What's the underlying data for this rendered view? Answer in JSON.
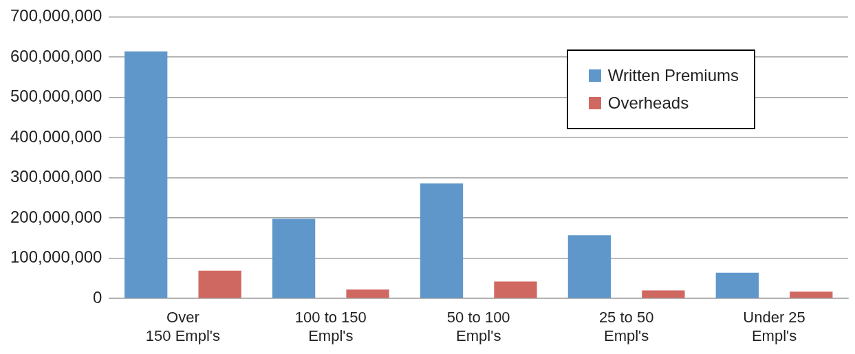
{
  "chart_data": {
    "type": "bar",
    "categories": [
      "Over\n150 Empl's",
      "100 to 150\nEmpl's",
      "50 to 100\nEmpl's",
      "25 to 50\nEmpl's",
      "Under 25\nEmpl's"
    ],
    "series": [
      {
        "name": "Written Premiums",
        "color": "#6097cb",
        "values": [
          614000000,
          198000000,
          286000000,
          157000000,
          64000000
        ]
      },
      {
        "name": "Overheads",
        "color": "#d06862",
        "values": [
          69000000,
          22000000,
          42000000,
          20000000,
          17000000
        ]
      }
    ],
    "ylim": [
      0,
      700000000
    ],
    "yticks": [
      0,
      {
        "value": 100000000,
        "label": "100,000,000"
      },
      {
        "value": 200000000,
        "label": "200,000,000"
      },
      {
        "value": 300000000,
        "label": "300,000,000"
      },
      {
        "value": 400000000,
        "label": "400,000,000"
      },
      {
        "value": 500000000,
        "label": "500,000,000"
      },
      {
        "value": 600000000,
        "label": "600,000,000"
      },
      {
        "value": 700000000,
        "label": "700,000,000"
      }
    ],
    "grid": "y",
    "legend": "top right"
  }
}
